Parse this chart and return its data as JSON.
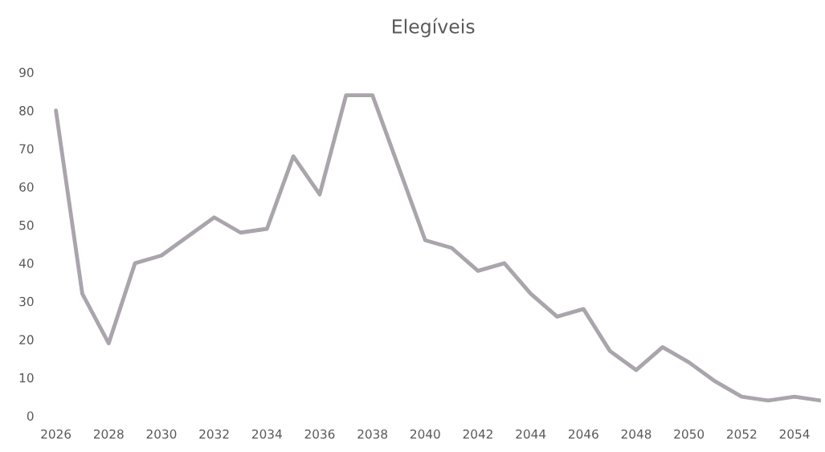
{
  "chart_data": {
    "type": "line",
    "title": "Elegíveis",
    "categories": [
      "2026",
      null,
      "2028",
      null,
      "2030",
      null,
      "2032",
      null,
      "2034",
      null,
      "2036",
      null,
      "2038",
      null,
      "2040",
      null,
      "2042",
      null,
      "2044",
      null,
      "2046",
      null,
      "2048",
      null,
      "2050",
      null,
      "2052",
      null,
      "2054",
      null
    ],
    "series": [
      {
        "color": "#aaa5ac",
        "values": [
          80,
          32,
          19,
          40,
          42,
          47,
          52,
          48,
          49,
          68,
          58,
          84,
          84,
          65,
          46,
          44,
          38,
          40,
          32,
          26,
          28,
          17,
          12,
          18,
          14,
          9,
          5,
          4,
          5,
          4
        ]
      }
    ],
    "ylim": [
      0,
      90
    ],
    "yticks": [
      0,
      10,
      20,
      30,
      40,
      50,
      60,
      70,
      80,
      90
    ],
    "grid": false,
    "legend": false
  }
}
